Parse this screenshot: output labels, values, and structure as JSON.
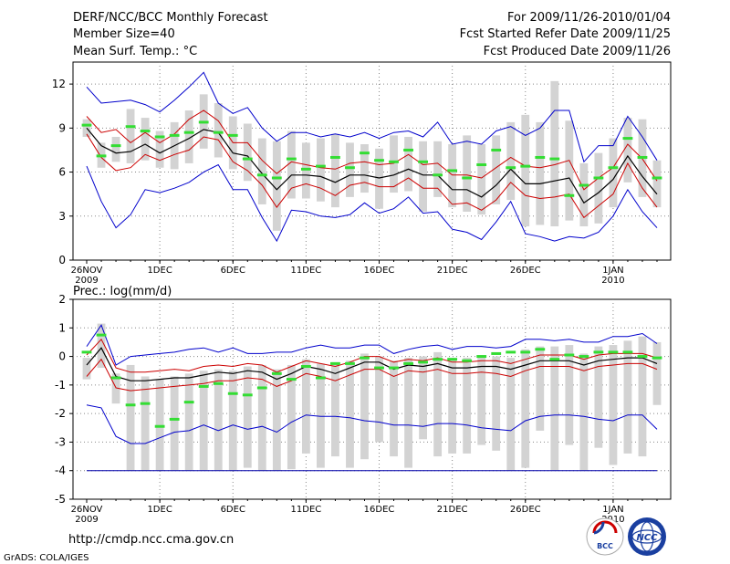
{
  "header": {
    "title": "DERF/NCC/BCC Monthly Forecast",
    "member_size": "Member Size=40",
    "panel1_label": "Mean Surf. Temp.: °C",
    "period": "For 2009/11/26-2010/01/04",
    "started": "Fcst Started Refer Date 2009/11/25",
    "produced": "Fcst Produced Date 2009/11/26"
  },
  "footer": {
    "url": "http://cmdp.ncc.cma.gov.cn",
    "credit": "GrADS: COLA/IGES",
    "logo_left_text": "BCC",
    "logo_right_text": "NCC"
  },
  "colors": {
    "box": "#d3d3d3",
    "mean": "#000000",
    "spread": "#cc0000",
    "extreme": "#0000cc",
    "obs": "#33dd33",
    "grid": "#888888",
    "floor": "#0000aa"
  },
  "chart_data": [
    {
      "type": "box",
      "title": "Mean Surf. Temp.: °C",
      "ylim": [
        0,
        13.5
      ],
      "yticks": [
        0,
        3,
        6,
        9,
        12
      ],
      "xlabels": [
        {
          "day": 0,
          "label": "26NOV",
          "sub": "2009"
        },
        {
          "day": 5,
          "label": "1DEC",
          "sub": ""
        },
        {
          "day": 10,
          "label": "6DEC",
          "sub": ""
        },
        {
          "day": 15,
          "label": "11DEC",
          "sub": ""
        },
        {
          "day": 20,
          "label": "16DEC",
          "sub": ""
        },
        {
          "day": 25,
          "label": "21DEC",
          "sub": ""
        },
        {
          "day": 30,
          "label": "26DEC",
          "sub": ""
        },
        {
          "day": 36,
          "label": "1JAN",
          "sub": "2010"
        }
      ],
      "mean": [
        9.0,
        7.8,
        7.3,
        7.4,
        7.9,
        7.3,
        7.8,
        8.3,
        8.9,
        8.7,
        7.3,
        7.1,
        5.9,
        4.8,
        5.8,
        5.8,
        5.7,
        5.3,
        5.8,
        5.8,
        5.6,
        5.8,
        6.2,
        5.8,
        5.8,
        4.8,
        4.8,
        4.3,
        5.1,
        6.2,
        5.2,
        5.2,
        5.4,
        5.6,
        3.9,
        4.6,
        5.5,
        7.1,
        5.7,
        4.5
      ],
      "upper": [
        9.8,
        8.7,
        8.9,
        8.0,
        8.7,
        8.0,
        8.6,
        9.6,
        10.2,
        9.5,
        8.0,
        8.0,
        6.8,
        5.9,
        6.7,
        6.5,
        6.3,
        6.2,
        6.6,
        6.7,
        6.5,
        6.6,
        7.2,
        6.5,
        6.6,
        5.8,
        5.8,
        5.6,
        6.3,
        7.0,
        6.4,
        6.3,
        6.5,
        6.8,
        4.8,
        5.6,
        6.3,
        7.9,
        6.9,
        5.4
      ],
      "lower": [
        8.6,
        7.0,
        6.1,
        6.3,
        7.2,
        6.8,
        7.2,
        7.5,
        8.4,
        8.2,
        6.7,
        6.1,
        5.1,
        3.6,
        4.9,
        5.2,
        4.9,
        4.4,
        5.1,
        5.3,
        5.0,
        5.0,
        5.6,
        4.9,
        4.9,
        3.8,
        3.9,
        3.4,
        4.1,
        5.3,
        4.4,
        4.2,
        4.3,
        4.5,
        2.9,
        3.7,
        4.5,
        6.6,
        4.9,
        3.6
      ],
      "max": [
        11.8,
        10.7,
        10.8,
        10.9,
        10.6,
        10.1,
        10.9,
        11.8,
        12.8,
        10.7,
        10.0,
        10.4,
        9.0,
        8.1,
        8.7,
        8.7,
        8.4,
        8.6,
        8.4,
        8.7,
        8.3,
        8.7,
        8.8,
        8.4,
        9.4,
        7.9,
        8.1,
        7.9,
        8.8,
        9.1,
        8.5,
        9.0,
        10.2,
        10.2,
        6.7,
        7.8,
        7.8,
        9.8,
        8.4,
        6.8
      ],
      "min": [
        6.4,
        4.0,
        2.2,
        3.1,
        4.8,
        4.6,
        4.9,
        5.3,
        6.0,
        6.5,
        4.8,
        4.8,
        2.9,
        1.3,
        3.4,
        3.3,
        3.0,
        2.9,
        3.1,
        3.9,
        3.2,
        3.5,
        4.3,
        3.2,
        3.3,
        2.1,
        1.9,
        1.4,
        2.6,
        4.0,
        1.8,
        1.6,
        1.3,
        1.6,
        1.5,
        1.9,
        3.0,
        4.8,
        3.3,
        2.2
      ],
      "box_hi": [
        9.6,
        8.0,
        8.4,
        10.3,
        9.7,
        8.8,
        9.4,
        10.2,
        11.3,
        10.7,
        9.8,
        9.3,
        8.3,
        8.1,
        8.8,
        8.0,
        8.3,
        8.6,
        8.0,
        7.9,
        7.6,
        8.5,
        8.4,
        8.1,
        8.1,
        7.9,
        8.5,
        7.9,
        8.5,
        9.4,
        9.9,
        9.4,
        12.2,
        9.5,
        6.6,
        7.3,
        8.3,
        9.7,
        9.6,
        6.8
      ],
      "box_lo": [
        8.4,
        6.3,
        6.7,
        6.6,
        6.8,
        6.3,
        6.2,
        6.6,
        7.6,
        7.0,
        6.2,
        5.4,
        3.8,
        2.0,
        4.2,
        4.2,
        4.0,
        3.6,
        4.3,
        4.6,
        3.5,
        4.6,
        4.7,
        3.3,
        4.3,
        3.6,
        3.3,
        3.1,
        3.8,
        4.1,
        2.3,
        2.4,
        2.3,
        2.7,
        2.3,
        2.5,
        3.6,
        5.3,
        4.3,
        3.6
      ],
      "obs": [
        9.2,
        7.1,
        7.8,
        9.1,
        8.8,
        8.4,
        8.5,
        8.7,
        9.4,
        8.7,
        8.5,
        6.9,
        5.8,
        5.6,
        6.9,
        6.2,
        6.4,
        7.0,
        6.3,
        7.3,
        6.8,
        6.7,
        7.5,
        6.7,
        5.8,
        6.1,
        5.6,
        6.5,
        7.5,
        6.3,
        6.4,
        7.0,
        6.9,
        4.4,
        5.1,
        5.6,
        6.3,
        8.3,
        7.0,
        5.6
      ]
    },
    {
      "type": "box",
      "title": "Prec.: log(mm/d)",
      "ylim": [
        -5,
        2
      ],
      "yticks": [
        -5,
        -4,
        -3,
        -2,
        -1,
        0,
        1,
        2
      ],
      "xlabels": [
        {
          "day": 0,
          "label": "26NOV",
          "sub": "2009"
        },
        {
          "day": 5,
          "label": "1DEC",
          "sub": ""
        },
        {
          "day": 10,
          "label": "6DEC",
          "sub": ""
        },
        {
          "day": 15,
          "label": "11DEC",
          "sub": ""
        },
        {
          "day": 20,
          "label": "16DEC",
          "sub": ""
        },
        {
          "day": 25,
          "label": "21DEC",
          "sub": ""
        },
        {
          "day": 30,
          "label": "26DEC",
          "sub": ""
        },
        {
          "day": 36,
          "label": "1JAN",
          "sub": "2010"
        }
      ],
      "floor": -4,
      "mean": [
        -0.3,
        0.3,
        -0.7,
        -0.85,
        -0.85,
        -0.8,
        -0.75,
        -0.75,
        -0.65,
        -0.55,
        -0.6,
        -0.5,
        -0.55,
        -0.8,
        -0.6,
        -0.35,
        -0.45,
        -0.6,
        -0.4,
        -0.2,
        -0.2,
        -0.45,
        -0.3,
        -0.35,
        -0.25,
        -0.4,
        -0.4,
        -0.35,
        -0.35,
        -0.45,
        -0.3,
        -0.15,
        -0.15,
        -0.15,
        -0.3,
        -0.15,
        -0.1,
        -0.05,
        -0.05,
        -0.25
      ],
      "upper": [
        0.05,
        0.6,
        -0.4,
        -0.55,
        -0.55,
        -0.5,
        -0.45,
        -0.5,
        -0.35,
        -0.3,
        -0.35,
        -0.25,
        -0.3,
        -0.55,
        -0.35,
        -0.15,
        -0.25,
        -0.35,
        -0.2,
        0.0,
        0.0,
        -0.2,
        -0.1,
        -0.15,
        -0.05,
        -0.2,
        -0.2,
        -0.15,
        -0.15,
        -0.25,
        -0.1,
        0.05,
        0.05,
        0.05,
        -0.1,
        0.05,
        0.1,
        0.1,
        0.1,
        -0.05
      ],
      "lower": [
        -0.7,
        -0.1,
        -1.1,
        -1.2,
        -1.15,
        -1.1,
        -1.05,
        -1.0,
        -0.95,
        -0.85,
        -0.85,
        -0.75,
        -0.8,
        -1.05,
        -0.85,
        -0.6,
        -0.7,
        -0.85,
        -0.65,
        -0.45,
        -0.45,
        -0.7,
        -0.5,
        -0.55,
        -0.45,
        -0.6,
        -0.6,
        -0.55,
        -0.6,
        -0.7,
        -0.5,
        -0.35,
        -0.35,
        -0.35,
        -0.5,
        -0.35,
        -0.3,
        -0.25,
        -0.25,
        -0.45
      ],
      "max": [
        0.35,
        1.1,
        -0.3,
        0.0,
        0.05,
        0.1,
        0.15,
        0.25,
        0.3,
        0.15,
        0.3,
        0.1,
        0.1,
        0.15,
        0.15,
        0.3,
        0.4,
        0.3,
        0.3,
        0.4,
        0.4,
        0.1,
        0.25,
        0.35,
        0.4,
        0.25,
        0.35,
        0.35,
        0.3,
        0.35,
        0.6,
        0.6,
        0.55,
        0.6,
        0.5,
        0.5,
        0.7,
        0.7,
        0.8,
        0.45
      ],
      "min": [
        -1.7,
        -1.8,
        -2.8,
        -3.05,
        -3.05,
        -2.85,
        -2.65,
        -2.6,
        -2.4,
        -2.6,
        -2.4,
        -2.55,
        -2.45,
        -2.65,
        -2.3,
        -2.05,
        -2.1,
        -2.1,
        -2.15,
        -2.25,
        -2.3,
        -2.4,
        -2.4,
        -2.45,
        -2.35,
        -2.35,
        -2.4,
        -2.5,
        -2.55,
        -2.6,
        -2.25,
        -2.1,
        -2.05,
        -2.05,
        -2.1,
        -2.2,
        -2.25,
        -2.05,
        -2.05,
        -2.55
      ],
      "box_hi": [
        -0.05,
        1.15,
        -0.6,
        -0.3,
        -0.7,
        -0.8,
        -0.7,
        -0.6,
        -0.5,
        -0.45,
        -0.5,
        -0.35,
        -0.3,
        -0.45,
        -0.3,
        -0.1,
        -0.25,
        -0.2,
        -0.15,
        0.1,
        0.0,
        -0.15,
        -0.05,
        0.0,
        0.15,
        -0.05,
        -0.05,
        0.05,
        0.0,
        -0.05,
        0.25,
        0.35,
        0.35,
        0.4,
        0.1,
        0.35,
        0.4,
        0.55,
        0.7,
        0.5
      ],
      "box_lo": [
        -0.8,
        -0.4,
        -1.65,
        -4.0,
        -4.0,
        -4.0,
        -4.0,
        -4.0,
        -4.0,
        -4.0,
        -4.0,
        -3.9,
        -4.0,
        -4.0,
        -3.95,
        -3.4,
        -3.9,
        -3.5,
        -3.9,
        -3.6,
        -3.0,
        -3.5,
        -3.9,
        -2.9,
        -3.5,
        -3.4,
        -3.4,
        -3.1,
        -3.3,
        -4.0,
        -3.9,
        -2.6,
        -4.0,
        -3.1,
        -4.0,
        -3.2,
        -3.8,
        -3.4,
        -3.5,
        -1.7
      ],
      "obs": [
        0.15,
        0.75,
        -0.75,
        -1.7,
        -1.65,
        -2.45,
        -2.2,
        -1.6,
        -1.05,
        -0.95,
        -1.3,
        -1.35,
        -1.1,
        -0.6,
        -0.8,
        -0.35,
        -0.75,
        -0.25,
        -0.25,
        -0.05,
        -0.4,
        -0.4,
        -0.25,
        -0.2,
        -0.1,
        -0.1,
        -0.15,
        0.0,
        0.1,
        0.15,
        0.15,
        0.25,
        -0.1,
        0.05,
        0.0,
        0.15,
        0.15,
        0.15,
        0.0,
        -0.05
      ]
    }
  ]
}
